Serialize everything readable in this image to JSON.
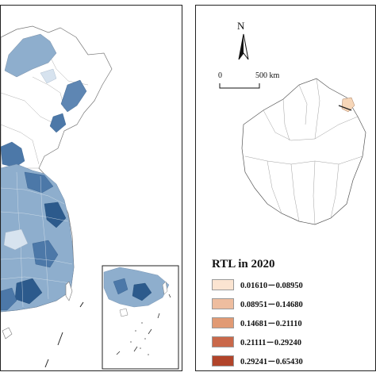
{
  "north_label": "N",
  "scale": {
    "start": "0",
    "end": "500 km"
  },
  "legend": {
    "title": "RTL in 2020",
    "items": [
      {
        "label": "0.01610－0.08950",
        "color": "#fbe4d1"
      },
      {
        "label": "0.08951－0.14680",
        "color": "#eebd9f"
      },
      {
        "label": "0.14681－0.21110",
        "color": "#e19a74"
      },
      {
        "label": "0.21111－0.29240",
        "color": "#c9684a"
      },
      {
        "label": "0.29241－0.65430",
        "color": "#b1442a"
      }
    ]
  },
  "colors": {
    "blue_light": "#d7e3ef",
    "blue_mid": "#8eaecd",
    "blue_dark": "#4c78a8",
    "blue_darkest": "#2c5a8c",
    "highlight_region": "#f6d6b8"
  }
}
